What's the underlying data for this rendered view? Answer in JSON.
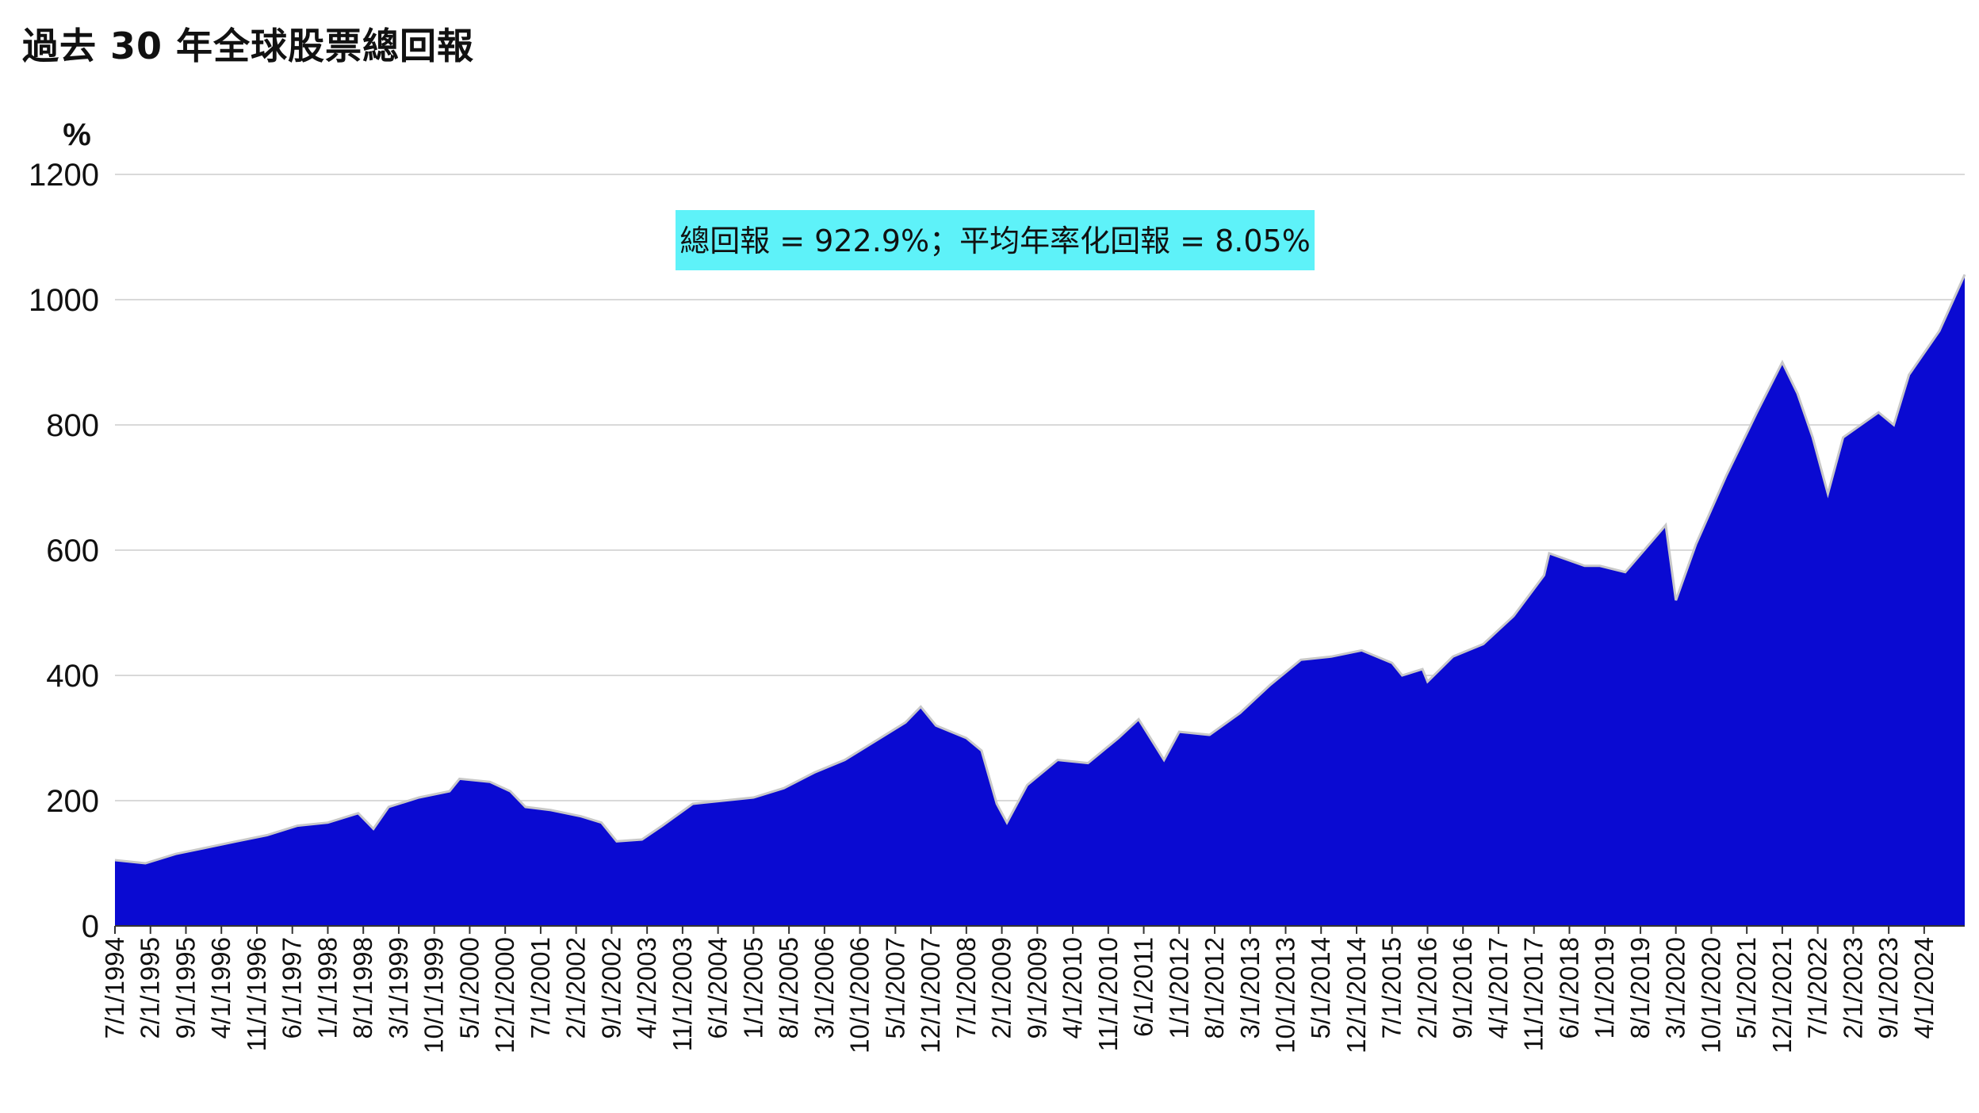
{
  "title": "過去 30 年全球股票總回報",
  "colors": {
    "area_fill": "#0a0ad2",
    "area_outline": "#c8c8c8",
    "annotation_bg": "#5ef2f9",
    "grid": "#d9d9d9",
    "axis": "#333333"
  },
  "chart_data": {
    "type": "area",
    "title": "過去 30 年全球股票總回報",
    "ylabel": "%",
    "ylim": [
      0,
      1200
    ],
    "yticks": [
      0,
      200,
      400,
      600,
      800,
      1000,
      1200
    ],
    "grid": true,
    "annotation": "總回報 = 922.9%；平均年率化回報 = 8.05%",
    "x_tick_labels": [
      "7/1/1994",
      "2/1/1995",
      "9/1/1995",
      "4/1/1996",
      "11/1/1996",
      "6/1/1997",
      "1/1/1998",
      "8/1/1998",
      "3/1/1999",
      "10/1/1999",
      "5/1/2000",
      "12/1/2000",
      "7/1/2001",
      "2/1/2002",
      "9/1/2002",
      "4/1/2003",
      "11/1/2003",
      "6/1/2004",
      "1/1/2005",
      "8/1/2005",
      "3/1/2006",
      "10/1/2006",
      "5/1/2007",
      "12/1/2007",
      "7/1/2008",
      "2/1/2009",
      "9/1/2009",
      "4/1/2010",
      "11/1/2010",
      "6/1/2011",
      "1/1/2012",
      "8/1/2012",
      "3/1/2013",
      "10/1/2013",
      "5/1/2014",
      "12/1/2014",
      "7/1/2015",
      "2/1/2016",
      "9/1/2016",
      "4/1/2017",
      "11/1/2017",
      "6/1/2018",
      "1/1/2019",
      "8/1/2019",
      "3/1/2020",
      "10/1/2020",
      "5/1/2021",
      "12/1/2021",
      "7/1/2022",
      "2/1/2023",
      "9/1/2023",
      "4/1/2024"
    ],
    "series": [
      {
        "x": [
          "7/1/1994",
          "1/1/1995",
          "7/1/1995",
          "1/1/1996",
          "7/1/1996",
          "1/1/1997",
          "7/1/1997",
          "1/1/1998",
          "7/1/1998",
          "10/1/1998",
          "1/1/1999",
          "7/1/1999",
          "1/1/2000",
          "3/1/2000",
          "9/1/2000",
          "1/1/2001",
          "4/1/2001",
          "9/1/2001",
          "3/1/2002",
          "7/1/2002",
          "10/1/2002",
          "3/1/2003",
          "7/1/2003",
          "1/1/2004",
          "7/1/2004",
          "1/1/2005",
          "7/1/2005",
          "1/1/2006",
          "7/1/2006",
          "1/1/2007",
          "7/1/2007",
          "10/1/2007",
          "1/1/2008",
          "7/1/2008",
          "10/1/2008",
          "1/1/2009",
          "3/1/2009",
          "7/1/2009",
          "1/1/2010",
          "7/1/2010",
          "1/1/2011",
          "5/1/2011",
          "10/1/2011",
          "1/1/2012",
          "7/1/2012",
          "1/1/2013",
          "7/1/2013",
          "1/1/2014",
          "7/1/2014",
          "1/1/2015",
          "7/1/2015",
          "9/1/2015",
          "1/1/2016",
          "2/1/2016",
          "7/1/2016",
          "1/1/2017",
          "7/1/2017",
          "1/1/2018",
          "2/1/2018",
          "9/1/2018",
          "12/1/2018",
          "5/1/2019",
          "1/1/2020",
          "3/1/2020",
          "7/1/2020",
          "1/1/2021",
          "7/1/2021",
          "12/1/2021",
          "3/1/2022",
          "6/1/2022",
          "9/1/2022",
          "12/1/2022",
          "7/1/2023",
          "10/1/2023",
          "1/1/2024",
          "7/1/2024",
          "12/1/2024"
        ],
        "values": [
          105,
          100,
          115,
          125,
          135,
          145,
          160,
          165,
          180,
          155,
          190,
          205,
          215,
          235,
          230,
          215,
          190,
          185,
          175,
          165,
          135,
          138,
          160,
          195,
          200,
          205,
          220,
          245,
          265,
          295,
          325,
          350,
          320,
          300,
          280,
          195,
          165,
          225,
          265,
          260,
          300,
          330,
          265,
          310,
          305,
          340,
          385,
          425,
          430,
          440,
          420,
          400,
          410,
          390,
          430,
          450,
          495,
          560,
          595,
          575,
          575,
          565,
          640,
          520,
          610,
          720,
          820,
          900,
          850,
          780,
          690,
          780,
          820,
          800,
          880,
          950,
          1040
        ]
      }
    ]
  }
}
